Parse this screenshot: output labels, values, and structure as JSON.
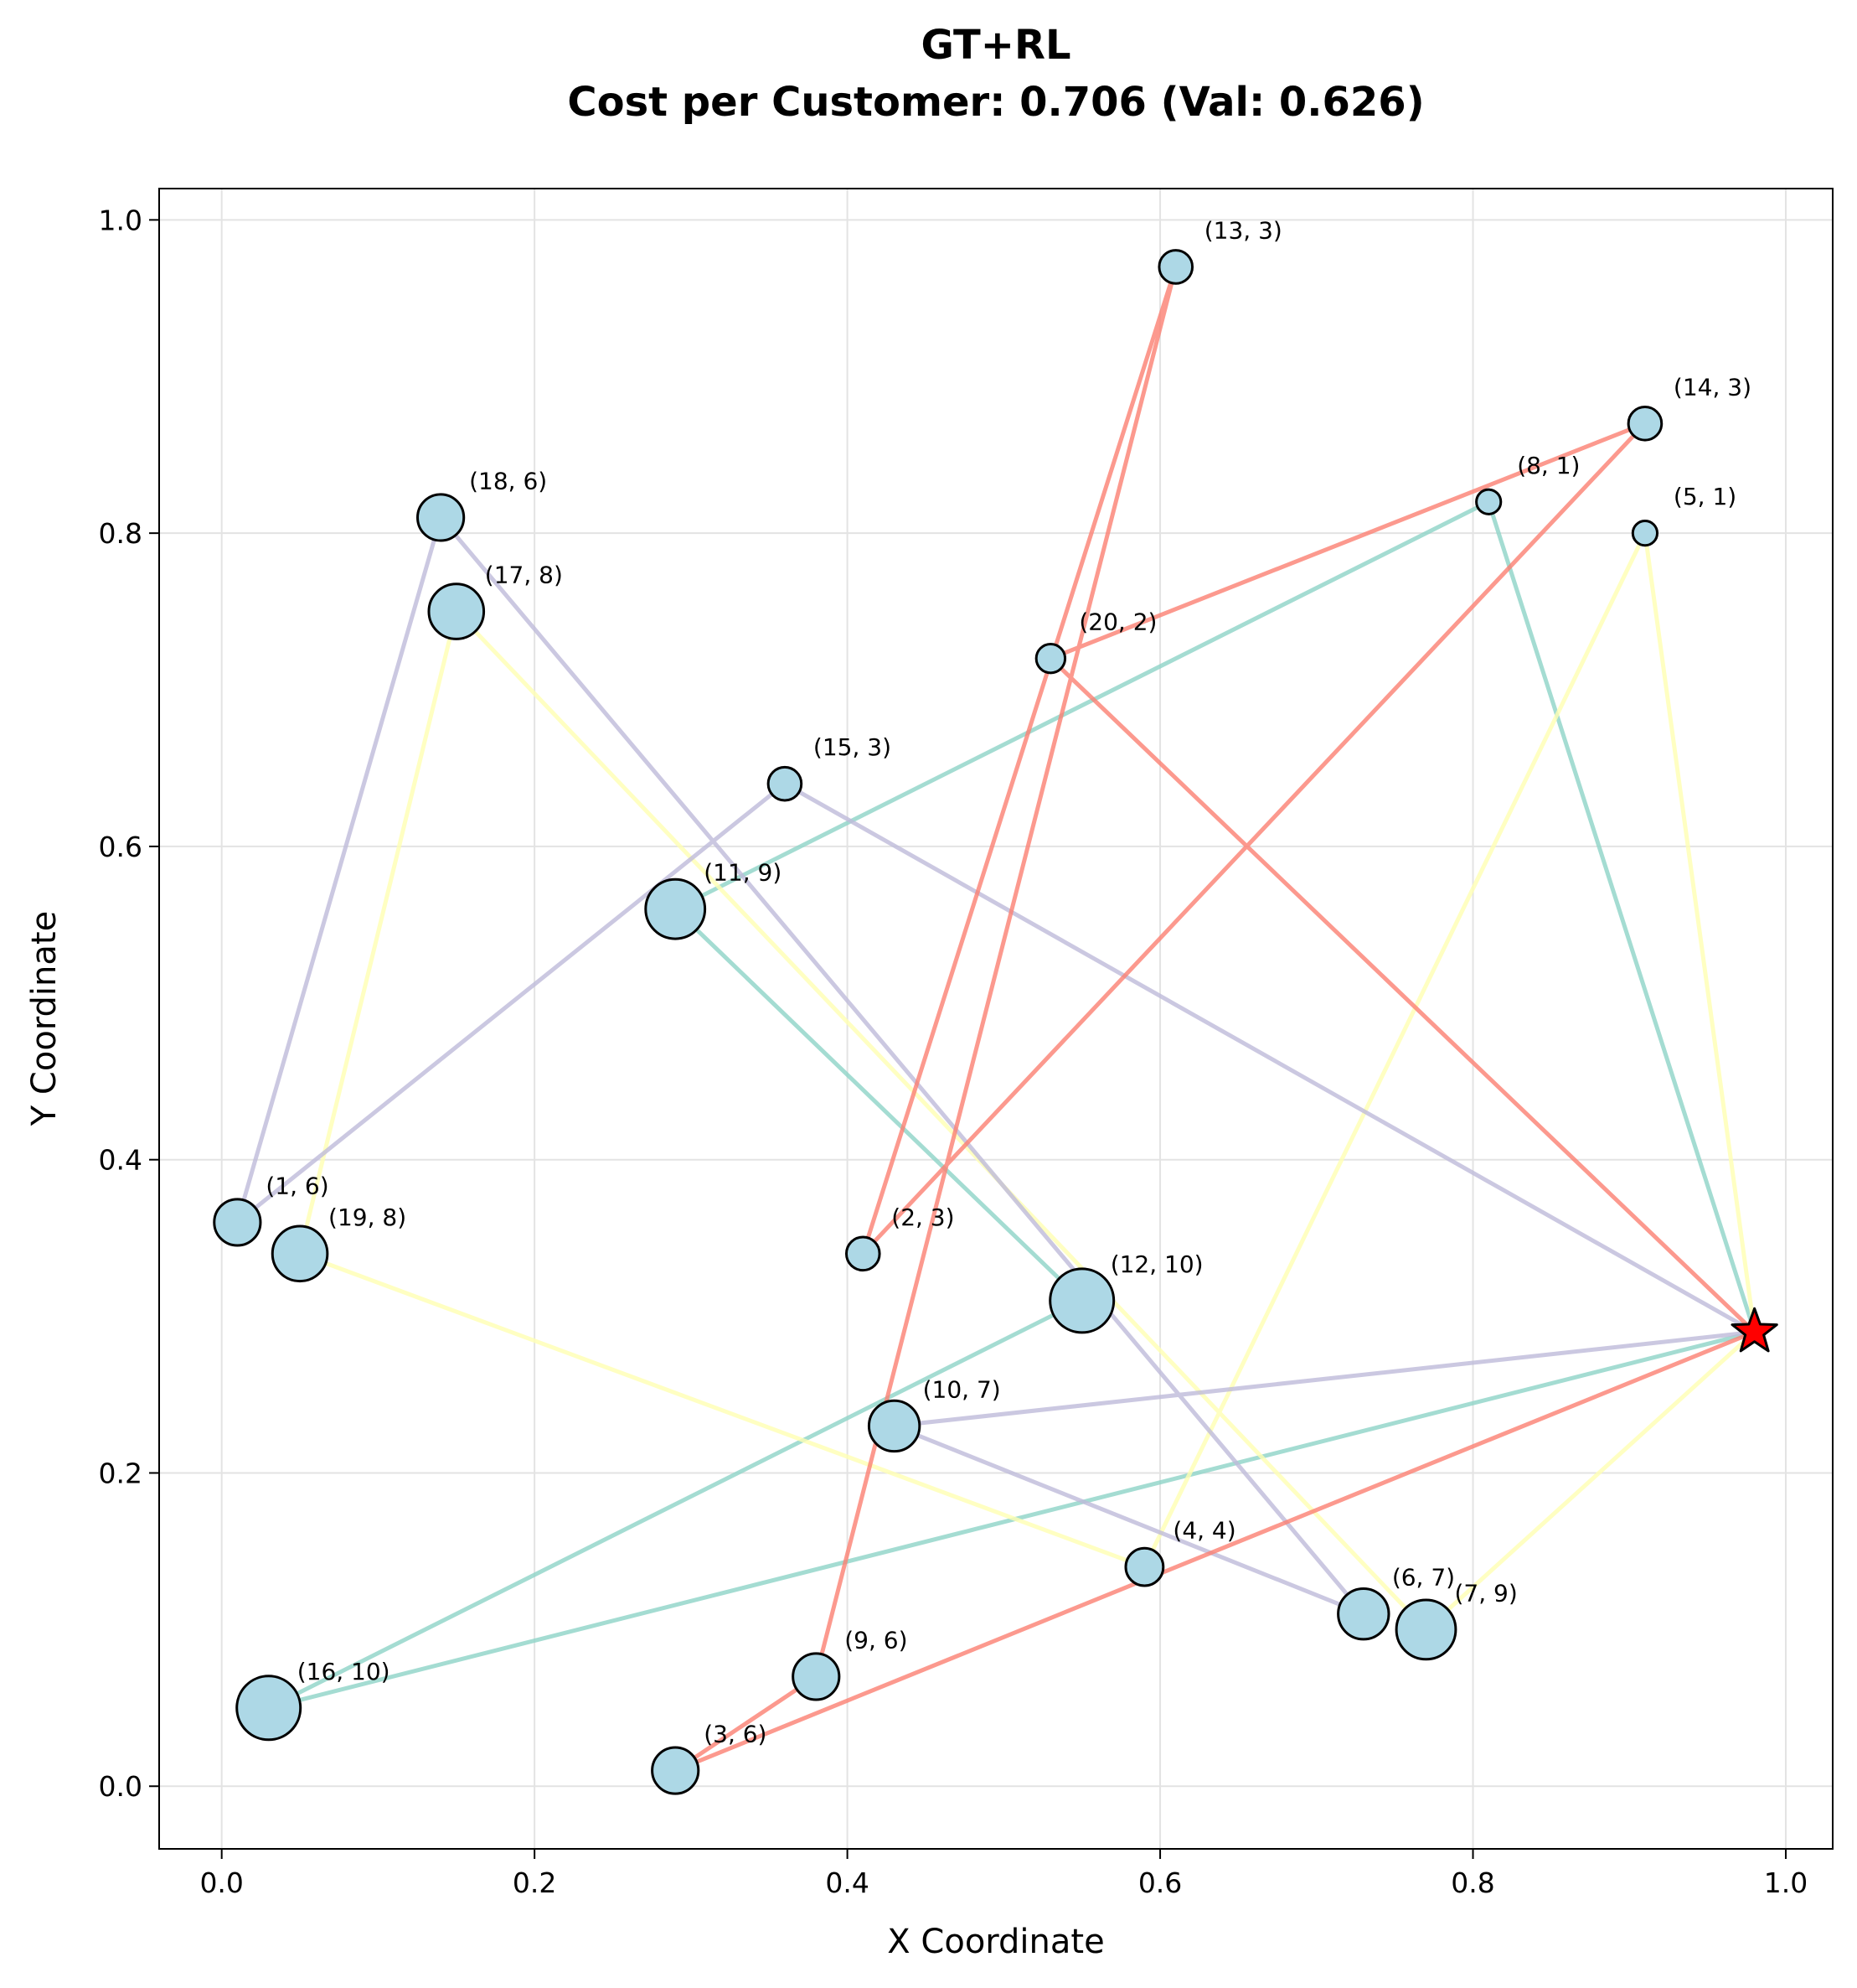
{
  "title": "GT+RL",
  "subtitle": "Cost per Customer: 0.706 (Val: 0.626)",
  "chart_data": {
    "type": "scatter",
    "title": "GT+RL",
    "subtitle": "Cost per Customer: 0.706 (Val: 0.626)",
    "xlabel": "X Coordinate",
    "ylabel": "Y Coordinate",
    "xlim": [
      -0.04,
      1.03
    ],
    "ylim": [
      -0.04,
      1.02
    ],
    "xticks": [
      0.0,
      0.2,
      0.4,
      0.6,
      0.8,
      1.0
    ],
    "xtick_labels": [
      "0.0",
      "0.2",
      "0.4",
      "0.6",
      "0.8",
      "1.0"
    ],
    "yticks": [
      0.0,
      0.2,
      0.4,
      0.6,
      0.8,
      1.0
    ],
    "ytick_labels": [
      "0.0",
      "0.2",
      "0.4",
      "0.6",
      "0.8",
      "1.0"
    ],
    "grid": true,
    "depot": {
      "x": 0.98,
      "y": 0.29,
      "marker": "star",
      "color": "#ff0000"
    },
    "customers": [
      {
        "id": 1,
        "demand": 6,
        "x": 0.01,
        "y": 0.36,
        "label": "(1, 6)"
      },
      {
        "id": 2,
        "demand": 3,
        "x": 0.41,
        "y": 0.34,
        "label": "(2, 3)"
      },
      {
        "id": 3,
        "demand": 6,
        "x": 0.29,
        "y": 0.01,
        "label": "(3, 6)"
      },
      {
        "id": 4,
        "demand": 4,
        "x": 0.59,
        "y": 0.14,
        "label": "(4, 4)"
      },
      {
        "id": 5,
        "demand": 1,
        "x": 0.91,
        "y": 0.8,
        "label": "(5, 1)"
      },
      {
        "id": 6,
        "demand": 7,
        "x": 0.73,
        "y": 0.11,
        "label": "(6, 7)"
      },
      {
        "id": 7,
        "demand": 9,
        "x": 0.77,
        "y": 0.1,
        "label": "(7, 9)"
      },
      {
        "id": 8,
        "demand": 1,
        "x": 0.81,
        "y": 0.82,
        "label": "(8, 1)"
      },
      {
        "id": 9,
        "demand": 6,
        "x": 0.38,
        "y": 0.07,
        "label": "(9, 6)"
      },
      {
        "id": 10,
        "demand": 7,
        "x": 0.43,
        "y": 0.23,
        "label": "(10, 7)"
      },
      {
        "id": 11,
        "demand": 9,
        "x": 0.29,
        "y": 0.56,
        "label": "(11, 9)"
      },
      {
        "id": 12,
        "demand": 10,
        "x": 0.55,
        "y": 0.31,
        "label": "(12, 10)"
      },
      {
        "id": 13,
        "demand": 3,
        "x": 0.61,
        "y": 0.97,
        "label": "(13, 3)"
      },
      {
        "id": 14,
        "demand": 3,
        "x": 0.91,
        "y": 0.87,
        "label": "(14, 3)"
      },
      {
        "id": 15,
        "demand": 3,
        "x": 0.36,
        "y": 0.64,
        "label": "(15, 3)"
      },
      {
        "id": 16,
        "demand": 10,
        "x": 0.03,
        "y": 0.05,
        "label": "(16, 10)"
      },
      {
        "id": 17,
        "demand": 8,
        "x": 0.15,
        "y": 0.75,
        "label": "(17, 8)"
      },
      {
        "id": 18,
        "demand": 6,
        "x": 0.14,
        "y": 0.81,
        "label": "(18, 6)"
      },
      {
        "id": 19,
        "demand": 8,
        "x": 0.05,
        "y": 0.34,
        "label": "(19, 8)"
      },
      {
        "id": 20,
        "demand": 2,
        "x": 0.53,
        "y": 0.72,
        "label": "(20, 2)"
      }
    ],
    "routes": [
      {
        "color": "#8dd3c7",
        "stops": [
          0,
          8,
          11,
          12,
          16,
          0
        ]
      },
      {
        "color": "#ffffb3",
        "stops": [
          0,
          5,
          4,
          19,
          17,
          7,
          0
        ]
      },
      {
        "color": "#bebada",
        "stops": [
          0,
          15,
          1,
          18,
          6,
          10,
          0
        ]
      },
      {
        "color": "#fb8072",
        "stops": [
          0,
          20,
          14,
          2,
          13,
          9,
          3,
          0
        ]
      }
    ],
    "customer_fill": "#add8e6",
    "customer_stroke": "#000000"
  }
}
